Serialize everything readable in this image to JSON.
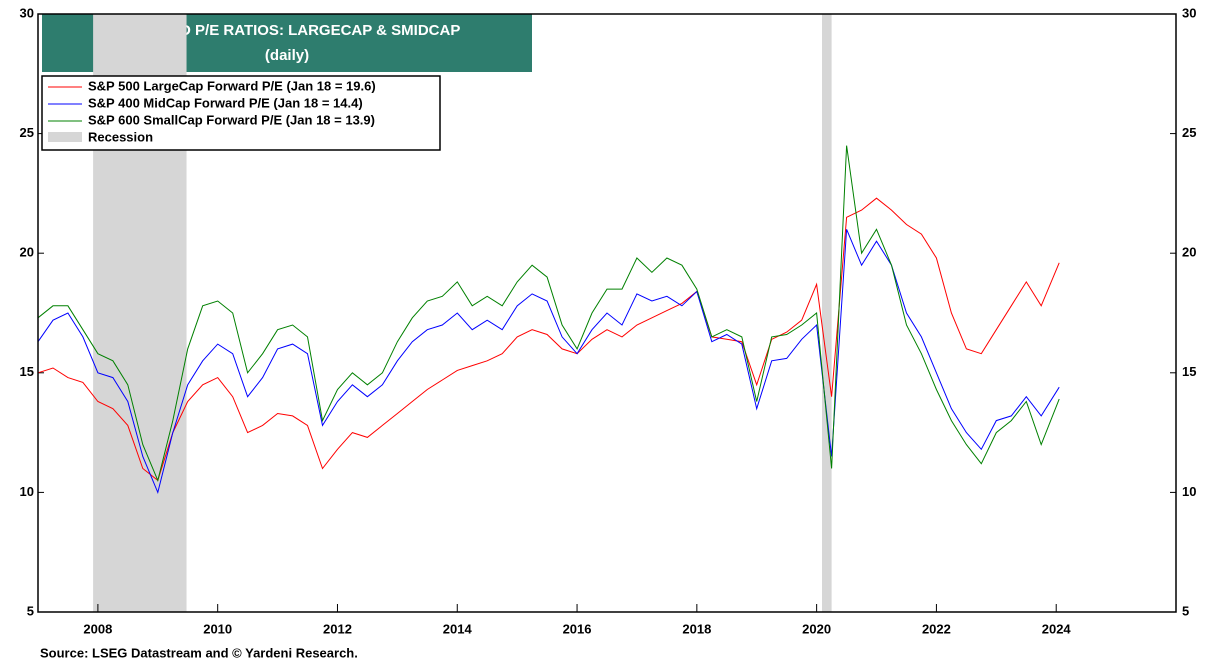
{
  "chart_data": {
    "type": "line",
    "title": "FORWARD P/E RATIOS: LARGECAP & SMIDCAP",
    "subtitle": "(daily)",
    "source": "Source: LSEG Datastream and © Yardeni Research.",
    "x": [
      2007.0,
      2007.25,
      2007.5,
      2007.75,
      2008.0,
      2008.25,
      2008.5,
      2008.75,
      2009.0,
      2009.25,
      2009.5,
      2009.75,
      2010.0,
      2010.25,
      2010.5,
      2010.75,
      2011.0,
      2011.25,
      2011.5,
      2011.75,
      2012.0,
      2012.25,
      2012.5,
      2012.75,
      2013.0,
      2013.25,
      2013.5,
      2013.75,
      2014.0,
      2014.25,
      2014.5,
      2014.75,
      2015.0,
      2015.25,
      2015.5,
      2015.75,
      2016.0,
      2016.25,
      2016.5,
      2016.75,
      2017.0,
      2017.25,
      2017.5,
      2017.75,
      2018.0,
      2018.25,
      2018.5,
      2018.75,
      2019.0,
      2019.25,
      2019.5,
      2019.75,
      2020.0,
      2020.25,
      2020.5,
      2020.75,
      2021.0,
      2021.25,
      2021.5,
      2021.75,
      2022.0,
      2022.25,
      2022.5,
      2022.75,
      2023.0,
      2023.25,
      2023.5,
      2023.75,
      2024.05
    ],
    "series": [
      {
        "name": "S&P 500 LargeCap Forward P/E (Jan 18 = 19.6)",
        "color": "#ff0000",
        "values": [
          15.0,
          15.2,
          14.8,
          14.6,
          13.8,
          13.5,
          12.8,
          11.0,
          10.5,
          12.5,
          13.8,
          14.5,
          14.8,
          14.0,
          12.5,
          12.8,
          13.3,
          13.2,
          12.8,
          11.0,
          11.8,
          12.5,
          12.3,
          12.8,
          13.3,
          13.8,
          14.3,
          14.7,
          15.1,
          15.3,
          15.5,
          15.8,
          16.5,
          16.8,
          16.6,
          16.0,
          15.8,
          16.4,
          16.8,
          16.5,
          17.0,
          17.3,
          17.6,
          17.9,
          18.4,
          16.5,
          16.4,
          16.3,
          14.5,
          16.4,
          16.7,
          17.2,
          18.7,
          14.0,
          21.5,
          21.8,
          22.3,
          21.8,
          21.2,
          20.8,
          19.8,
          17.5,
          16.0,
          15.8,
          16.8,
          17.8,
          18.8,
          17.8,
          19.6
        ]
      },
      {
        "name": "S&P 400 MidCap Forward P/E (Jan 18 = 14.4)",
        "color": "#0000ff",
        "values": [
          16.3,
          17.2,
          17.5,
          16.5,
          15.0,
          14.8,
          13.8,
          11.5,
          10.0,
          12.5,
          14.5,
          15.5,
          16.2,
          15.8,
          14.0,
          14.8,
          16.0,
          16.2,
          15.8,
          12.8,
          13.8,
          14.5,
          14.0,
          14.5,
          15.5,
          16.3,
          16.8,
          17.0,
          17.5,
          16.8,
          17.2,
          16.8,
          17.8,
          18.3,
          18.0,
          16.5,
          15.8,
          16.8,
          17.5,
          17.0,
          18.3,
          18.0,
          18.2,
          17.8,
          18.4,
          16.3,
          16.6,
          16.2,
          13.5,
          15.5,
          15.6,
          16.4,
          17.0,
          11.5,
          21.0,
          19.5,
          20.5,
          19.5,
          17.5,
          16.5,
          15.0,
          13.5,
          12.5,
          11.8,
          13.0,
          13.2,
          14.0,
          13.2,
          14.4
        ]
      },
      {
        "name": "S&P 600 SmallCap Forward P/E (Jan 18 = 13.9)",
        "color": "#008000",
        "values": [
          17.3,
          17.8,
          17.8,
          16.8,
          15.8,
          15.5,
          14.5,
          12.0,
          10.5,
          13.0,
          16.0,
          17.8,
          18.0,
          17.5,
          15.0,
          15.8,
          16.8,
          17.0,
          16.5,
          13.0,
          14.3,
          15.0,
          14.5,
          15.0,
          16.3,
          17.3,
          18.0,
          18.2,
          18.8,
          17.8,
          18.2,
          17.8,
          18.8,
          19.5,
          19.0,
          17.0,
          16.0,
          17.5,
          18.5,
          18.5,
          19.8,
          19.2,
          19.8,
          19.5,
          18.5,
          16.5,
          16.8,
          16.5,
          13.8,
          16.5,
          16.6,
          17.0,
          17.5,
          11.0,
          24.5,
          20.0,
          21.0,
          19.5,
          17.0,
          15.8,
          14.3,
          13.0,
          12.0,
          11.2,
          12.5,
          13.0,
          13.8,
          12.0,
          13.9
        ]
      }
    ],
    "recession_label": "Recession",
    "recessions": [
      [
        2007.92,
        2009.48
      ],
      [
        2020.09,
        2020.25
      ]
    ],
    "xlim": [
      2007,
      2026
    ],
    "xticks": [
      2008,
      2010,
      2012,
      2014,
      2016,
      2018,
      2020,
      2022,
      2024
    ],
    "ylim": [
      5,
      30
    ],
    "yticks": [
      5,
      10,
      15,
      20,
      25,
      30
    ]
  }
}
